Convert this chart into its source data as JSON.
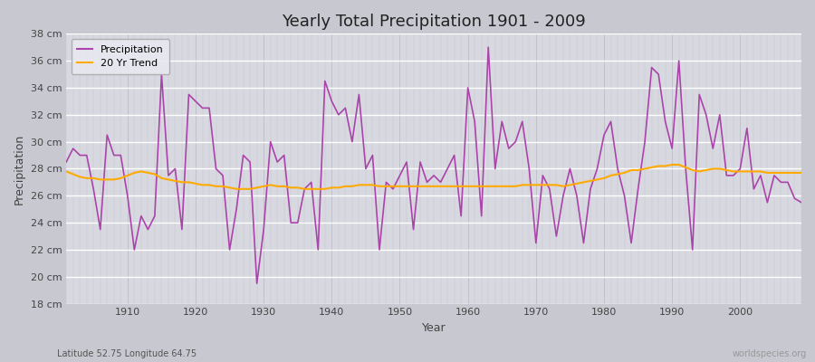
{
  "title": "Yearly Total Precipitation 1901 - 2009",
  "xlabel": "Year",
  "ylabel": "Precipitation",
  "subtitle": "Latitude 52.75 Longitude 64.75",
  "watermark": "worldspecies.org",
  "background_color": "#c8c8d0",
  "plot_bg_color": "#d8d8e0",
  "precip_color": "#aa44aa",
  "trend_color": "#ffaa00",
  "ylim": [
    18,
    38
  ],
  "yticks": [
    18,
    20,
    22,
    24,
    26,
    28,
    30,
    32,
    34,
    36,
    38
  ],
  "years": [
    1901,
    1902,
    1903,
    1904,
    1905,
    1906,
    1907,
    1908,
    1909,
    1910,
    1911,
    1912,
    1913,
    1914,
    1915,
    1916,
    1917,
    1918,
    1919,
    1920,
    1921,
    1922,
    1923,
    1924,
    1925,
    1926,
    1927,
    1928,
    1929,
    1930,
    1931,
    1932,
    1933,
    1934,
    1935,
    1936,
    1937,
    1938,
    1939,
    1940,
    1941,
    1942,
    1943,
    1944,
    1945,
    1946,
    1947,
    1948,
    1949,
    1950,
    1951,
    1952,
    1953,
    1954,
    1955,
    1956,
    1957,
    1958,
    1959,
    1960,
    1961,
    1962,
    1963,
    1964,
    1965,
    1966,
    1967,
    1968,
    1969,
    1970,
    1971,
    1972,
    1973,
    1974,
    1975,
    1976,
    1977,
    1978,
    1979,
    1980,
    1981,
    1982,
    1983,
    1984,
    1985,
    1986,
    1987,
    1988,
    1989,
    1990,
    1991,
    1992,
    1993,
    1994,
    1995,
    1996,
    1997,
    1998,
    1999,
    2000,
    2001,
    2002,
    2003,
    2004,
    2005,
    2006,
    2007,
    2008,
    2009
  ],
  "precip": [
    28.5,
    29.5,
    29.0,
    29.0,
    26.5,
    23.5,
    30.5,
    29.0,
    29.0,
    26.0,
    22.0,
    24.5,
    23.5,
    24.5,
    35.0,
    27.5,
    28.0,
    23.5,
    33.5,
    33.0,
    32.5,
    32.5,
    28.0,
    27.5,
    22.0,
    25.0,
    29.0,
    28.5,
    19.5,
    23.5,
    30.0,
    28.5,
    29.0,
    24.0,
    24.0,
    26.5,
    27.0,
    22.0,
    34.5,
    33.0,
    32.0,
    32.5,
    30.0,
    33.5,
    28.0,
    29.0,
    22.0,
    27.0,
    26.5,
    27.5,
    28.5,
    23.5,
    28.5,
    27.0,
    27.5,
    27.0,
    28.0,
    29.0,
    24.5,
    34.0,
    31.5,
    24.5,
    37.0,
    28.0,
    31.5,
    29.5,
    30.0,
    31.5,
    28.0,
    22.5,
    27.5,
    26.5,
    23.0,
    26.0,
    28.0,
    26.0,
    22.5,
    26.5,
    28.0,
    30.5,
    31.5,
    28.0,
    26.0,
    22.5,
    26.5,
    30.0,
    35.5,
    35.0,
    31.5,
    29.5,
    36.0,
    28.0,
    22.0,
    33.5,
    32.0,
    29.5,
    32.0,
    27.5,
    27.5,
    28.0,
    31.0,
    26.5,
    27.5,
    25.5,
    27.5,
    27.0,
    27.0,
    25.8,
    25.5
  ],
  "trend": [
    27.8,
    27.6,
    27.4,
    27.3,
    27.3,
    27.2,
    27.2,
    27.2,
    27.3,
    27.5,
    27.7,
    27.8,
    27.7,
    27.6,
    27.3,
    27.2,
    27.1,
    27.0,
    27.0,
    26.9,
    26.8,
    26.8,
    26.7,
    26.7,
    26.6,
    26.5,
    26.5,
    26.5,
    26.6,
    26.7,
    26.8,
    26.7,
    26.7,
    26.6,
    26.6,
    26.5,
    26.5,
    26.5,
    26.5,
    26.6,
    26.6,
    26.7,
    26.7,
    26.8,
    26.8,
    26.8,
    26.7,
    26.7,
    26.7,
    26.7,
    26.7,
    26.7,
    26.7,
    26.7,
    26.7,
    26.7,
    26.7,
    26.7,
    26.7,
    26.7,
    26.7,
    26.7,
    26.7,
    26.7,
    26.7,
    26.7,
    26.7,
    26.8,
    26.8,
    26.8,
    26.8,
    26.8,
    26.8,
    26.7,
    26.8,
    26.9,
    27.0,
    27.1,
    27.2,
    27.3,
    27.5,
    27.6,
    27.7,
    27.9,
    27.9,
    28.0,
    28.1,
    28.2,
    28.2,
    28.3,
    28.3,
    28.1,
    27.9,
    27.8,
    27.9,
    28.0,
    28.0,
    27.9,
    27.8,
    27.8,
    27.8,
    27.8,
    27.8,
    27.7,
    27.7,
    27.7,
    27.7,
    27.7,
    27.7
  ]
}
